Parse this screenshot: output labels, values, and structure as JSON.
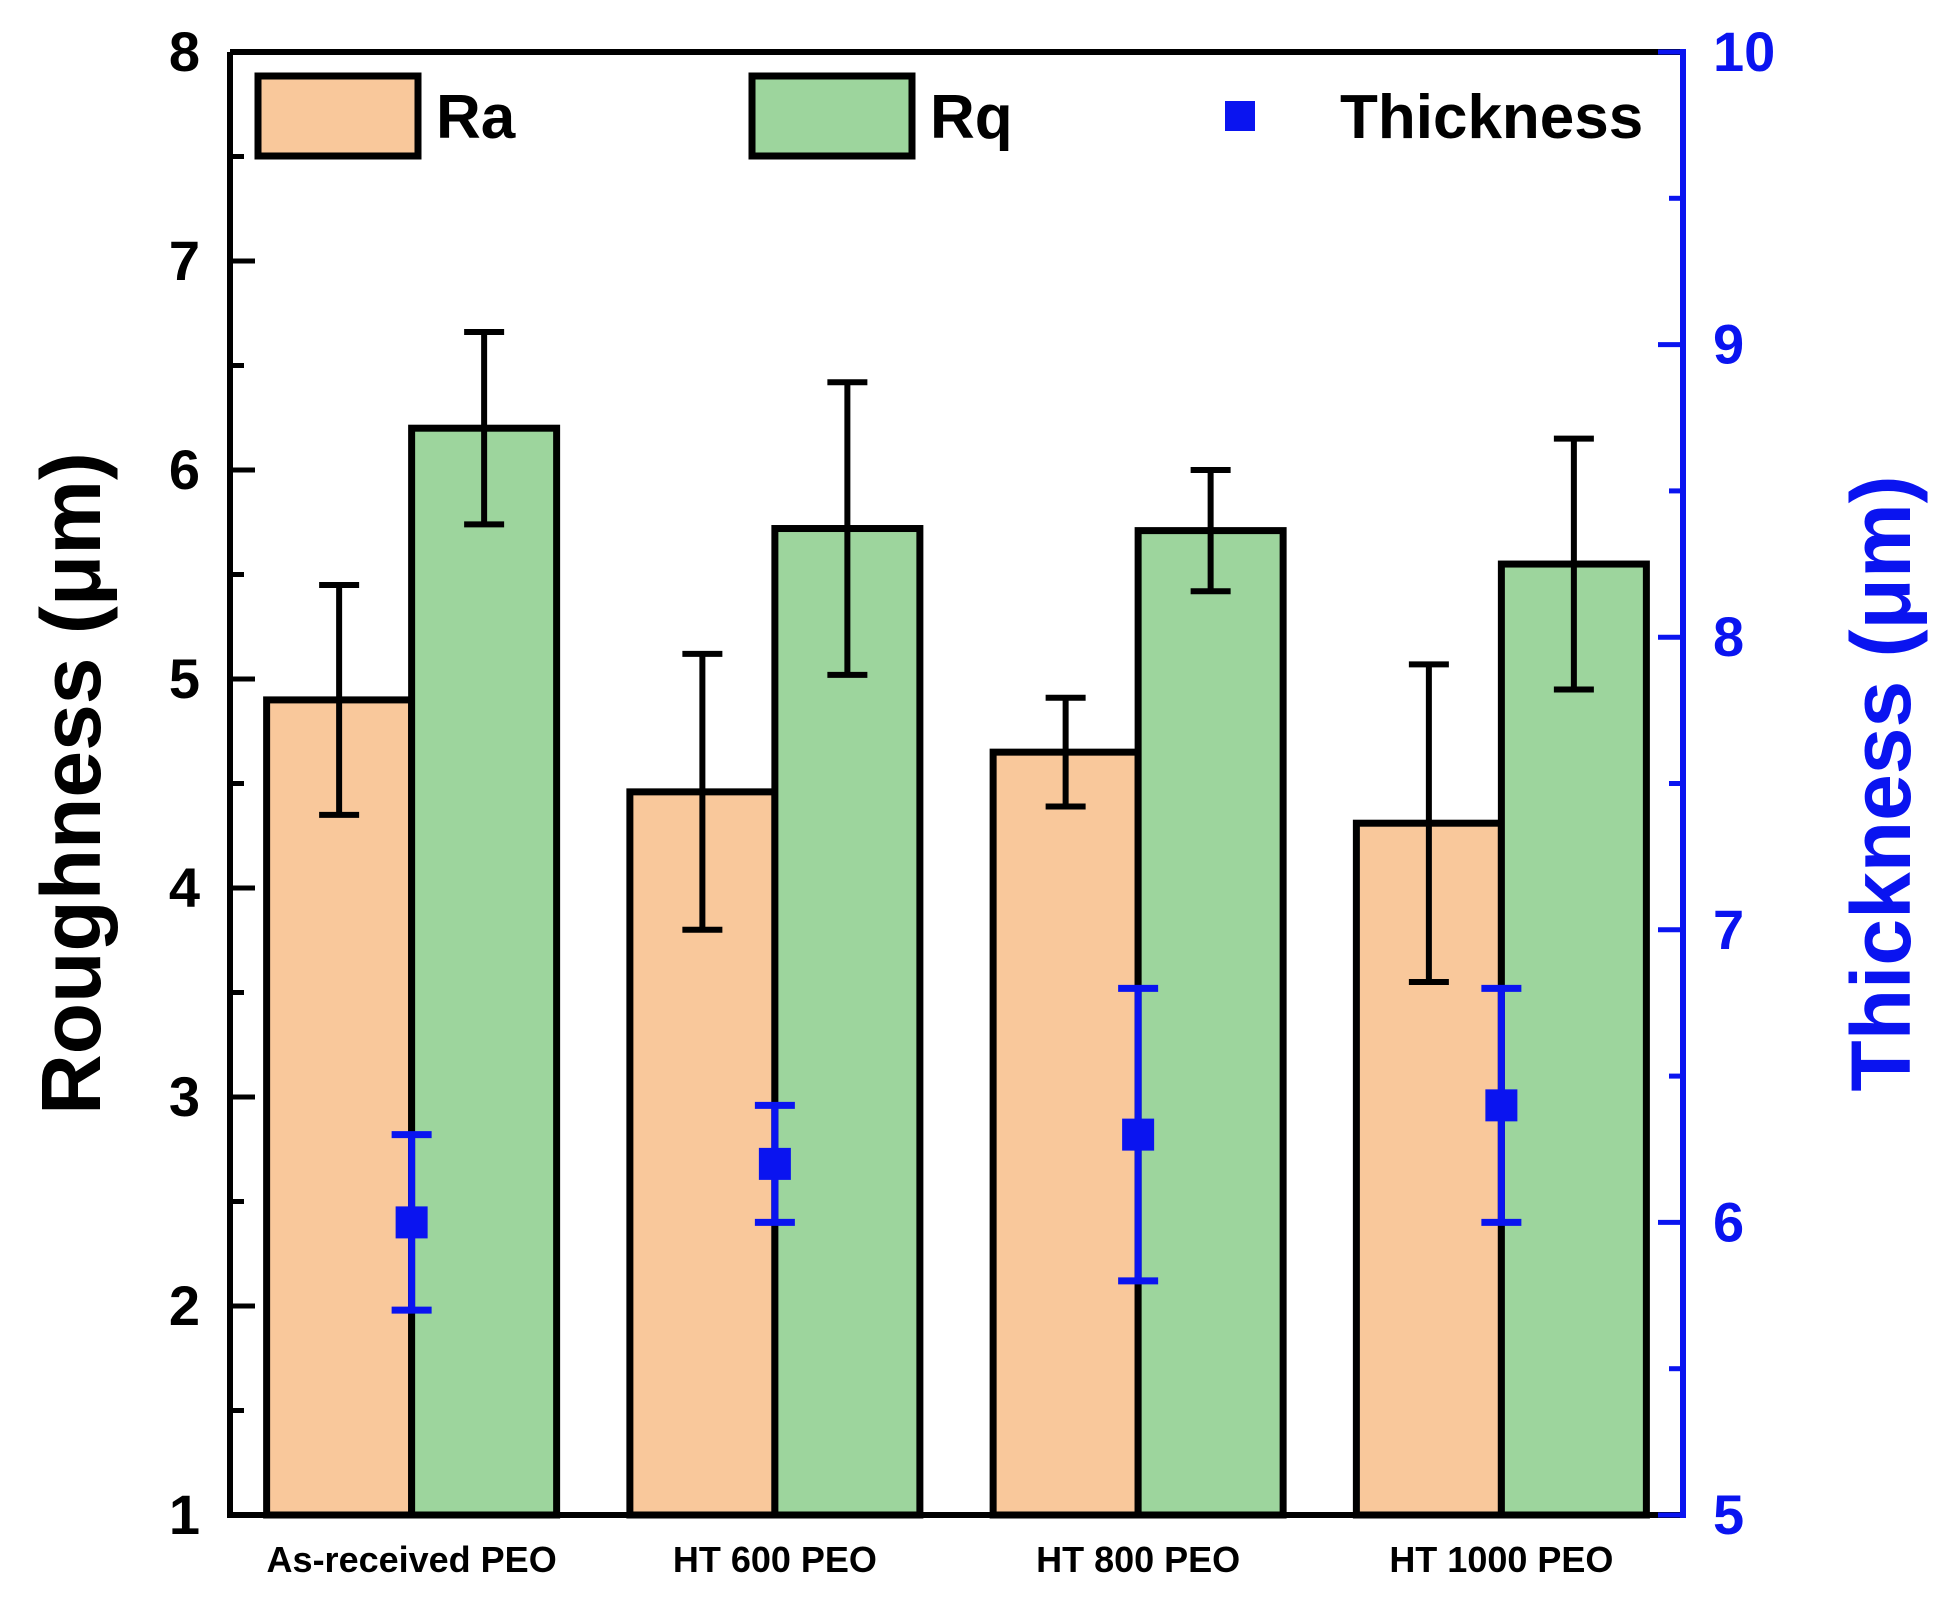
{
  "chart_data": {
    "type": "bar",
    "categories": [
      "As-received PEO",
      "HT 600 PEO",
      "HT 800 PEO",
      "HT 1000 PEO"
    ],
    "series": [
      {
        "name": "Ra",
        "axis": "left",
        "color": "#F9C89B",
        "values": [
          4.9,
          4.46,
          4.65,
          4.31
        ],
        "errors": [
          0.55,
          0.66,
          0.26,
          0.76
        ]
      },
      {
        "name": "Rq",
        "axis": "left",
        "color": "#9DD59D",
        "values": [
          6.2,
          5.72,
          5.71,
          5.55
        ],
        "errors": [
          0.46,
          0.7,
          0.29,
          0.6
        ]
      },
      {
        "name": "Thickness",
        "axis": "right",
        "type": "scatter",
        "marker": "square",
        "color": "#0A14F0",
        "values": [
          6.0,
          6.2,
          6.3,
          6.4
        ],
        "errors": [
          0.3,
          0.2,
          0.5,
          0.4
        ]
      }
    ],
    "ylabel": "Roughness (μm)",
    "y2label": "Thickness (μm)",
    "ylim": [
      1,
      8
    ],
    "y2lim": [
      5,
      10
    ],
    "yticks": [
      "1",
      "2",
      "3",
      "4",
      "5",
      "6",
      "7",
      "8"
    ],
    "y2ticks": [
      "5",
      "6",
      "7",
      "8",
      "9",
      "10"
    ],
    "legend": {
      "placement": "top",
      "entries": [
        "Ra",
        "Rq",
        "Thickness"
      ]
    },
    "grid": false,
    "axis_colors": {
      "left": "#000000",
      "right": "#0A14F0"
    }
  }
}
